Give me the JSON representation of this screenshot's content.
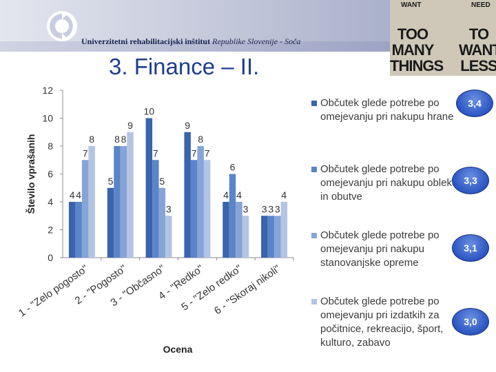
{
  "header": {
    "institute_bold": "Univerzitetni rehabilitacijski inštitut",
    "institute_italic": "Republike Slovenije - Soča",
    "title": "3. Finance – II."
  },
  "poster": {
    "want_label": "WANT",
    "need_label": "NEED",
    "left_text": [
      "TOO",
      "MANY",
      "THINGS"
    ],
    "right_text": [
      "TO",
      "WANT",
      "LESS"
    ]
  },
  "badges": [
    "3,4",
    "3,3",
    "3,1",
    "3,0"
  ],
  "colors": {
    "series": [
      "#3a64ad",
      "#5a85c8",
      "#86a4d6",
      "#b4c4e4"
    ],
    "title": "#1f3d8f",
    "badge": "#2b55c3"
  },
  "chart_data": {
    "type": "bar",
    "ylabel": "Število vprašanih",
    "xlabel": "Ocena",
    "ylim": [
      0,
      12
    ],
    "yticks": [
      0,
      2,
      4,
      6,
      8,
      10,
      12
    ],
    "categories": [
      "1 - \"Zelo pogosto\"",
      "2 - \"Pogosto\"",
      "3 - \"Občasno\"",
      "4 - \"Redko\"",
      "5 - \"Zelo redko\"",
      "6 - \"Skoraj nikoli\""
    ],
    "series": [
      {
        "name": "Občutek glede potrebe po omejevanju pri nakupu hrane",
        "values": [
          4,
          5,
          10,
          9,
          4,
          3
        ]
      },
      {
        "name": "Občutek glede potrebe po omejevanju pri nakupu obleke in obutve",
        "values": [
          4,
          8,
          7,
          7,
          6,
          3
        ]
      },
      {
        "name": "Občutek glede potrebe po omejevanju pri nakupu stanovanjske opreme",
        "values": [
          7,
          8,
          5,
          8,
          4,
          3
        ]
      },
      {
        "name": "Občutek glede potrebe po omejevanju pri izdatkih za počitnice, rekreacijo, šport, kulturo, zabavo",
        "values": [
          8,
          9,
          3,
          7,
          3,
          4
        ]
      }
    ],
    "legend_position": "right",
    "grid": false
  }
}
